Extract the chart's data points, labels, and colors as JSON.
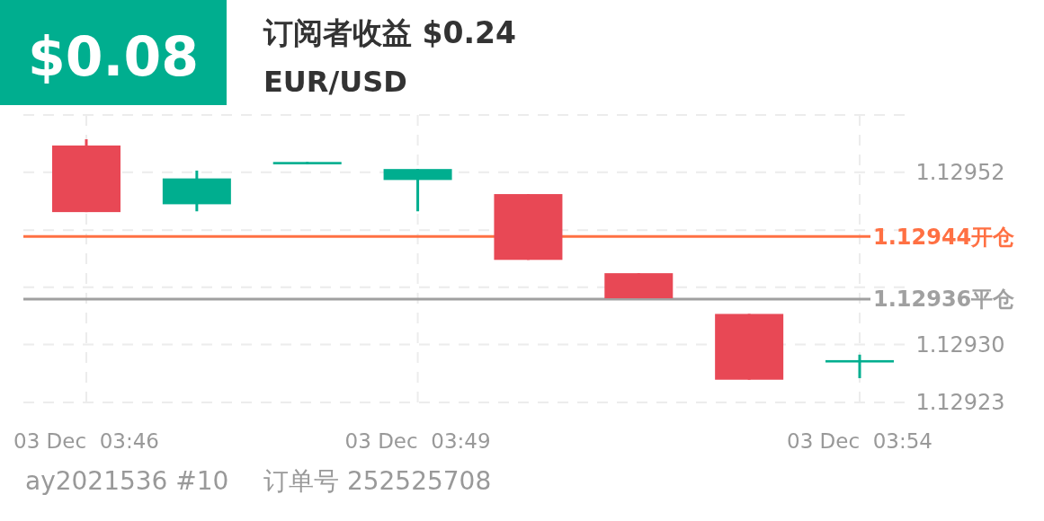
{
  "chart_data": {
    "type": "candlestick",
    "title": "订阅者收益 $0.24",
    "subtitle": "EUR/USD",
    "annotations": [
      "$0.08",
      "ay2021536 #10",
      "订单号 252525708"
    ],
    "categories": [
      "03 Dec  03:46",
      null,
      null,
      "03 Dec  03:49",
      null,
      null,
      null,
      "03 Dec  03:54"
    ],
    "ohlc": [
      [
        1.129556,
        1.129564,
        1.129471,
        1.129471
      ],
      [
        1.129481,
        1.129524,
        1.129472,
        1.129514
      ],
      [
        1.129532,
        1.129535,
        1.129532,
        1.129535
      ],
      [
        1.129512,
        1.129526,
        1.129472,
        1.129526
      ],
      [
        1.129494,
        1.129494,
        1.12941,
        1.12941
      ],
      [
        1.129393,
        1.129393,
        1.129361,
        1.129361
      ],
      [
        1.129341,
        1.129341,
        1.129257,
        1.129257
      ],
      [
        1.129279,
        1.129289,
        1.129259,
        1.129282
      ]
    ],
    "colors": [
      "#e84855",
      "#00ae8f",
      "#00ae8f",
      "#00ae8f",
      "#e84855",
      "#e84855",
      "#e84855",
      "#00ae8f"
    ],
    "ylim": [
      1.129228,
      1.129595
    ],
    "yticks": [
      {
        "value": 1.129595,
        "label": null
      },
      {
        "value": 1.129522,
        "label": "1.12952"
      },
      {
        "value": 1.129448,
        "label": null
      },
      {
        "value": 1.129375,
        "label": null
      },
      {
        "value": 1.129302,
        "label": "1.12930"
      },
      {
        "value": 1.129228,
        "label": "1.12923"
      }
    ],
    "ref_lines": [
      {
        "axis": "y",
        "value": 1.12944,
        "label": "1.12944开仓",
        "color": "#ff7043"
      },
      {
        "axis": "y",
        "value": 1.12936,
        "label": "1.12936平仓",
        "color": "#a0a0a0"
      }
    ],
    "grid": true
  }
}
